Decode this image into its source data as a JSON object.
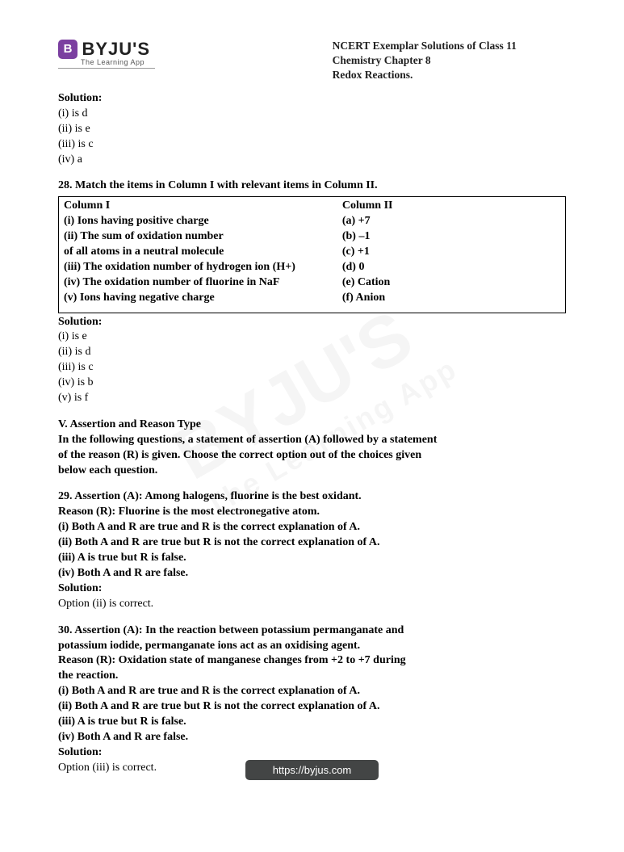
{
  "header": {
    "logo_glyph": "B",
    "logo_text": "BYJU'S",
    "logo_sub": "The Learning App",
    "doc_title_l1": "NCERT Exemplar Solutions of Class 11 Chemistry Chapter 8",
    "doc_title_l2": "Redox Reactions."
  },
  "watermark": {
    "main": "BYJU'S",
    "sub": "The Learning App"
  },
  "sol27": {
    "label": "Solution:",
    "lines": [
      "(i) is d",
      "(ii) is e",
      "(iii) is c",
      "(iv) a"
    ]
  },
  "q28": {
    "heading": "28. Match the items in Column I with relevant items in Column II.",
    "col1_head": "Column I",
    "col2_head": "Column II",
    "col1": [
      "(i) Ions having positive charge",
      "(ii) The sum of oxidation number",
      "of all atoms in a neutral molecule",
      "(iii) The oxidation number of hydrogen ion (H+)",
      "(iv) The oxidation number of fluorine in NaF",
      "(v) Ions having negative charge"
    ],
    "col2": [
      "(a) +7",
      "(b) –1",
      "(c) +1",
      "(d) 0",
      "(e) Cation",
      "(f) Anion"
    ],
    "sol_label": "Solution:",
    "sol_lines": [
      "(i) is e",
      "(ii) is d",
      "(iii) is c",
      "(iv) is b",
      "(v) is f"
    ]
  },
  "sectionV": {
    "title": "V. Assertion and Reason Type",
    "intro_l1": "In the following questions, a statement of assertion (A) followed by a statement",
    "intro_l2": "of the reason (R) is given. Choose the correct option out of the choices given",
    "intro_l3": "below each question."
  },
  "q29": {
    "assertion": "29. Assertion (A): Among halogens, fluorine is the best oxidant.",
    "reason": "Reason (R): Fluorine is the most electronegative atom.",
    "opts": [
      "(i) Both A and R are true and R is the correct explanation of A.",
      "(ii) Both A and R are true but R is not the correct explanation of A.",
      "(iii) A is true but R is false.",
      "(iv) Both A and R are false."
    ],
    "sol_label": "Solution:",
    "sol": "Option (ii) is correct."
  },
  "q30": {
    "assertion_l1": "30. Assertion (A): In the reaction between potassium permanganate and",
    "assertion_l2": "potassium iodide, permanganate ions act as an oxidising agent.",
    "reason_l1": "Reason (R): Oxidation state of manganese changes from +2 to +7 during",
    "reason_l2": "the reaction.",
    "opts": [
      "(i) Both A and R are true and R is the correct explanation of A.",
      "(ii) Both A and R are true but R is not the correct explanation of A.",
      "(iii) A is true but R is false.",
      "(iv) Both A and R are false."
    ],
    "sol_label": "Solution:",
    "sol": "Option (iii) is correct."
  },
  "footer": {
    "url": "https://byjus.com"
  }
}
